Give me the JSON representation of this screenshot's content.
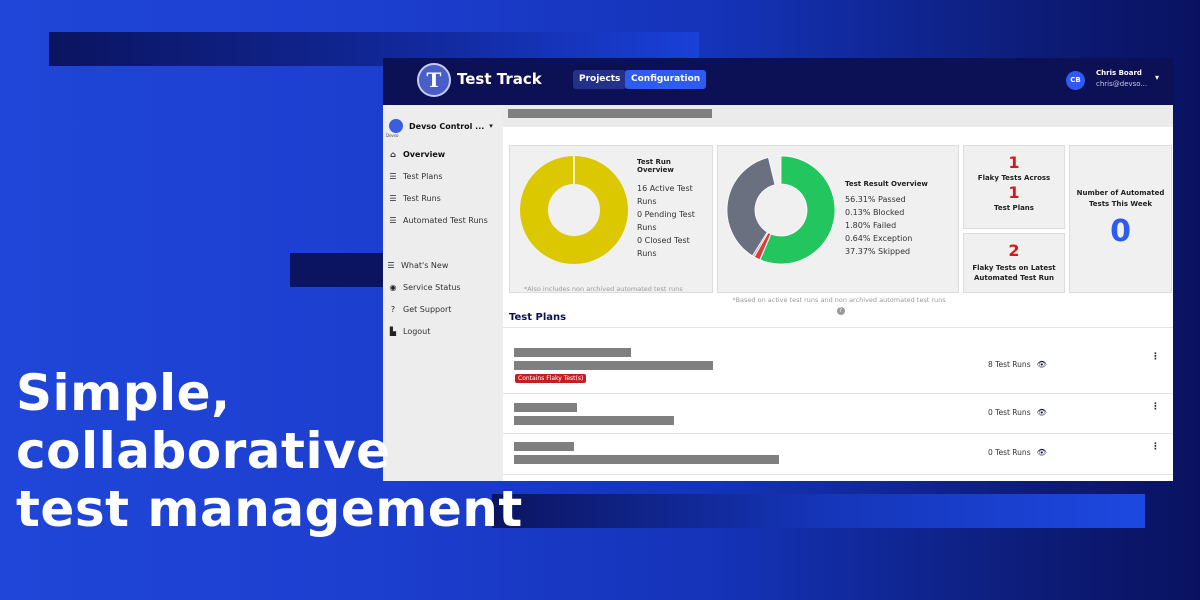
{
  "headline": {
    "lines": [
      "Simple,",
      "collaborative",
      "test management"
    ]
  },
  "app": {
    "title": "Test Track",
    "nav": {
      "projects": "Projects",
      "configuration": "Configuration"
    },
    "user": {
      "initials": "CB",
      "name": "Chris Board",
      "email": "chris@devso..."
    }
  },
  "sidebar": {
    "org_name": "Devso Control ...",
    "items": [
      {
        "label": "Overview",
        "icon": "home-icon"
      },
      {
        "label": "Test Plans",
        "icon": "list-icon"
      },
      {
        "label": "Test Runs",
        "icon": "list-icon"
      },
      {
        "label": "Automated Test Runs",
        "icon": "list-icon"
      },
      {
        "label": "What's New",
        "icon": "list-icon"
      },
      {
        "label": "Service Status",
        "icon": "broadcast-icon"
      },
      {
        "label": "Get Support",
        "icon": "question-icon"
      },
      {
        "label": "Logout",
        "icon": "door-icon"
      }
    ]
  },
  "overview": {
    "run_card": {
      "title": "Test Run Overview",
      "lines": [
        "16 Active Test Runs",
        "0 Pending Test Runs",
        "0 Closed Test Runs"
      ],
      "note": "*Also includes non archived automated test runs",
      "donut_color": "#dcc800"
    },
    "result_card": {
      "title": "Test Result Overview",
      "lines": [
        "56.31% Passed",
        "0.13% Blocked",
        "1.80% Failed",
        "0.64% Exception",
        "37.37% Skipped"
      ],
      "note": "*Based on active test runs and non archived automated test runs",
      "slices": [
        {
          "name": "Passed",
          "percent": 56.31,
          "color": "#22c55e"
        },
        {
          "name": "Blocked",
          "percent": 0.13,
          "color": "#f5a623"
        },
        {
          "name": "Failed",
          "percent": 1.8,
          "color": "#e03a3a"
        },
        {
          "name": "Exception",
          "percent": 0.64,
          "color": "#b0b0b0"
        },
        {
          "name": "Skipped",
          "percent": 37.37,
          "color": "#6b7080"
        }
      ]
    },
    "flaky_across": {
      "count": "1",
      "label_a": "Flaky Tests Across",
      "count_b": "1",
      "label_b": "Test Plans"
    },
    "flaky_latest": {
      "count": "2",
      "label": "Flaky Tests on Latest Automated Test Run"
    },
    "automated_week": {
      "label": "Number of Automated Tests This Week",
      "count": "0"
    }
  },
  "test_plans": {
    "title": "Test Plans",
    "rows": [
      {
        "badge": "Contains Flaky Test(s)",
        "runs": "8 Test Runs"
      },
      {
        "badge": "",
        "runs": "0 Test Runs"
      },
      {
        "badge": "",
        "runs": "0 Test Runs"
      }
    ]
  }
}
